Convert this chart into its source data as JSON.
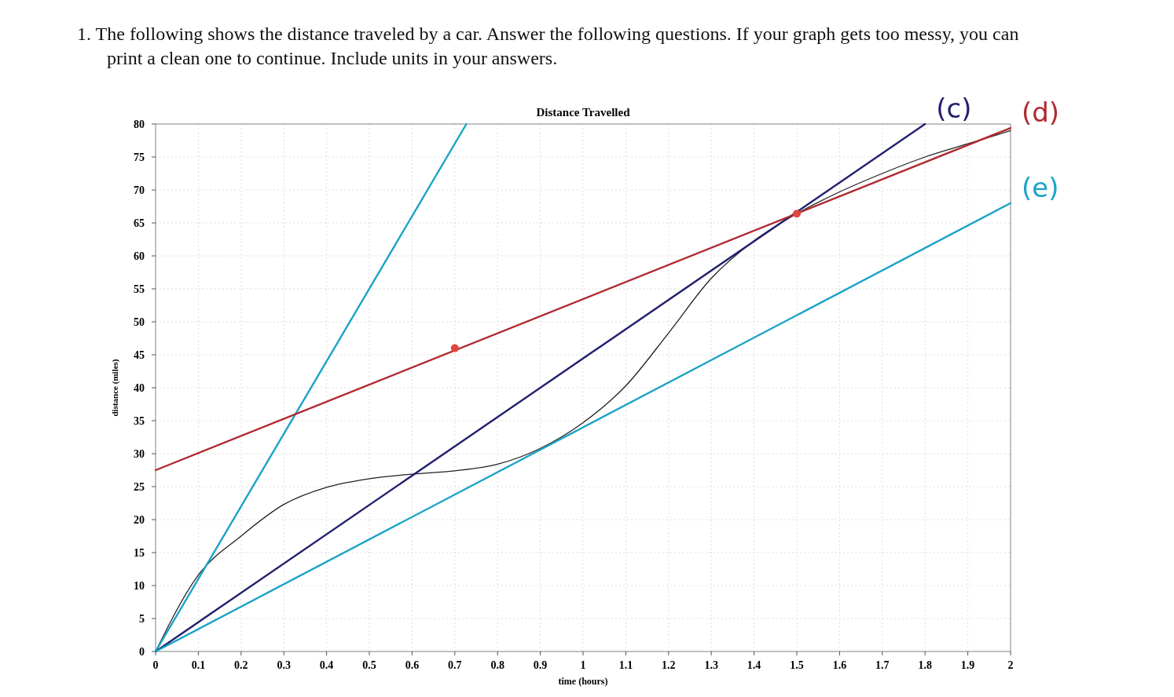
{
  "chart_data": {
    "type": "line",
    "title": "Distance Travelled",
    "xlabel": "time (hours)",
    "ylabel": "distance (miles)",
    "annotations": [
      "1. The following shows the distance traveled by a car. Answer the following questions. If your graph gets too messy, you can print a clean one to continue. Include units in your answers."
    ],
    "xlim": [
      0,
      2
    ],
    "ylim": [
      0,
      80
    ],
    "xticks": [
      0,
      0.1,
      0.2,
      0.3,
      0.4,
      0.5,
      0.6,
      0.7,
      0.8,
      0.9,
      1,
      1.1,
      1.2,
      1.3,
      1.4,
      1.5,
      1.6,
      1.7,
      1.8,
      1.9,
      2
    ],
    "yticks": [
      0,
      5,
      10,
      15,
      20,
      25,
      30,
      35,
      40,
      45,
      50,
      55,
      60,
      65,
      70,
      75,
      80
    ],
    "grid": true,
    "line_style": "solid",
    "series": [
      {
        "color": "#222222",
        "x": [
          0,
          0.1,
          0.2,
          0.3,
          0.4,
          0.5,
          0.6,
          0.7,
          0.8,
          0.9,
          1,
          1.1,
          1.2,
          1.3,
          1.4,
          1.5,
          1.6,
          1.7,
          1.8,
          1.9,
          2
        ],
        "values": [
          0,
          11.6,
          17.5,
          22.3,
          24.9,
          26.2,
          26.9,
          27.4,
          28.4,
          30.8,
          34.7,
          40.3,
          48.3,
          56.6,
          62.3,
          66.4,
          69.7,
          72.5,
          75,
          77,
          79
        ]
      },
      {
        "color": "#1aa3c8",
        "x": [
          0,
          0.727
        ],
        "values": [
          0,
          80
        ]
      },
      {
        "name": "(c)",
        "color": "#23206e",
        "x": [
          0,
          1.8
        ],
        "values": [
          0,
          80
        ]
      },
      {
        "name": "(d)",
        "color": "#b02a30",
        "x": [
          0,
          2
        ],
        "values": [
          27.5,
          79.4
        ]
      },
      {
        "name": "(e)",
        "color": "#1aa3c8",
        "x": [
          0,
          2
        ],
        "values": [
          0,
          68
        ]
      },
      {
        "type": "scatter",
        "color": "#e0463f",
        "marker": "circle",
        "x": [
          0.7,
          1.5
        ],
        "values": [
          46,
          66.4
        ]
      }
    ]
  }
}
